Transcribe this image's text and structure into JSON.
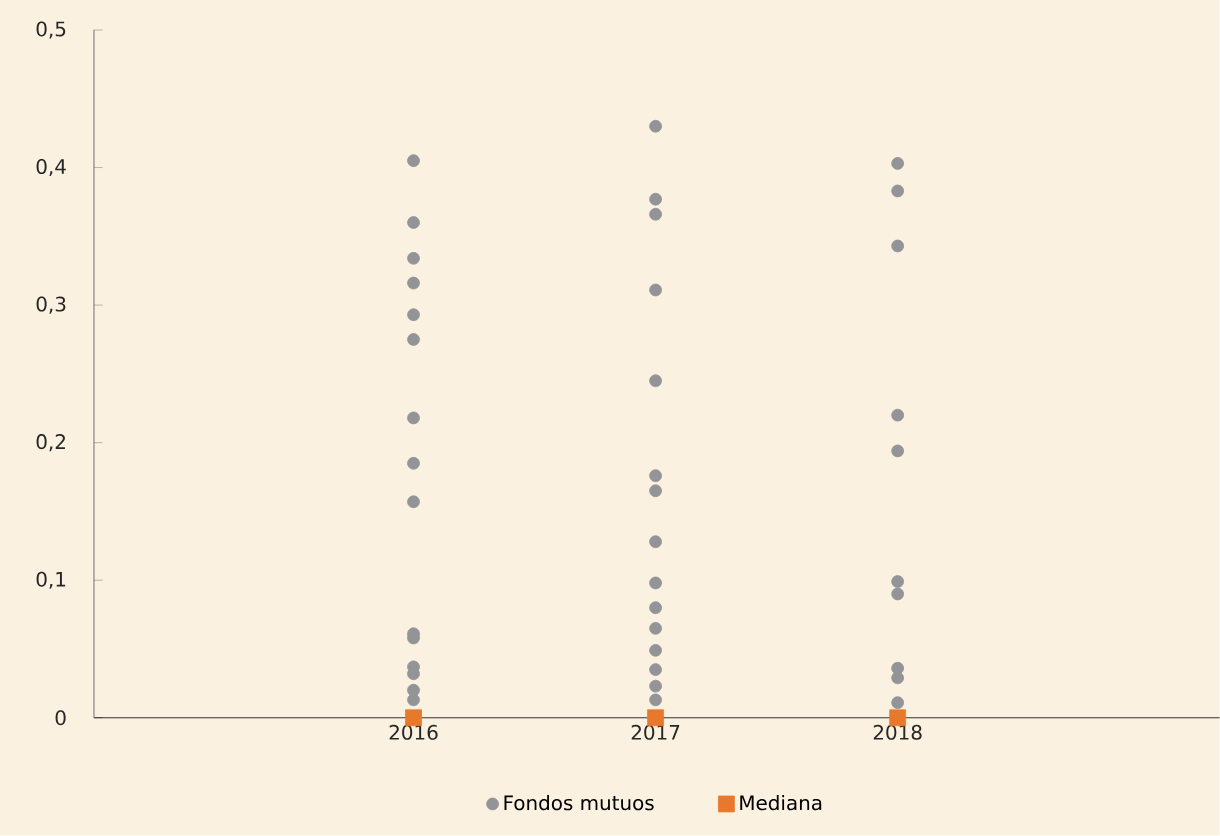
{
  "chart_data": {
    "type": "scatter",
    "series": [
      {
        "name": "Fondos mutuos",
        "color": "#939498",
        "marker": "circle",
        "x": [
          2016,
          2016,
          2016,
          2016,
          2016,
          2016,
          2016,
          2016,
          2016,
          2016,
          2016,
          2016,
          2016,
          2016,
          2016,
          null,
          2017,
          2017,
          2017,
          2017,
          2017,
          2017,
          2017,
          2017,
          2017,
          2017,
          2017,
          2017,
          2017,
          2017,
          2017,
          2018,
          2018,
          2018,
          2018,
          2018,
          2018,
          2018,
          2018,
          2018,
          2018,
          null
        ],
        "values": [
          0.405,
          0.36,
          0.334,
          0.316,
          0.293,
          0.275,
          0.218,
          0.185,
          0.157,
          0.061,
          0.058,
          0.037,
          0.032,
          0.02,
          0.013,
          null,
          0.43,
          0.377,
          0.366,
          0.311,
          0.245,
          0.176,
          0.165,
          0.128,
          0.098,
          0.08,
          0.065,
          0.049,
          0.035,
          0.023,
          0.013,
          0.403,
          0.383,
          0.343,
          0.22,
          0.194,
          0.099,
          0.09,
          0.036,
          0.029,
          0.011,
          null
        ]
      },
      {
        "name": "Mediana",
        "color": "#e8792c",
        "marker": "square",
        "x": [
          2016,
          2017,
          2018
        ],
        "values": [
          0,
          0,
          0
        ]
      }
    ],
    "xlim": [
      2014.68,
      2019.33
    ],
    "xticks": [
      2016,
      2017,
      2018
    ],
    "ylim": [
      0,
      0.5
    ],
    "yticks": [
      0,
      {
        "value": 0.1,
        "label": "0,1"
      },
      {
        "value": 0.2,
        "label": "0,2"
      },
      {
        "value": 0.3,
        "label": "0,3"
      },
      {
        "value": 0.4,
        "label": "0,4"
      },
      {
        "value": 0.5,
        "label": "0,5"
      }
    ],
    "legend": "bottom",
    "grid": false
  }
}
